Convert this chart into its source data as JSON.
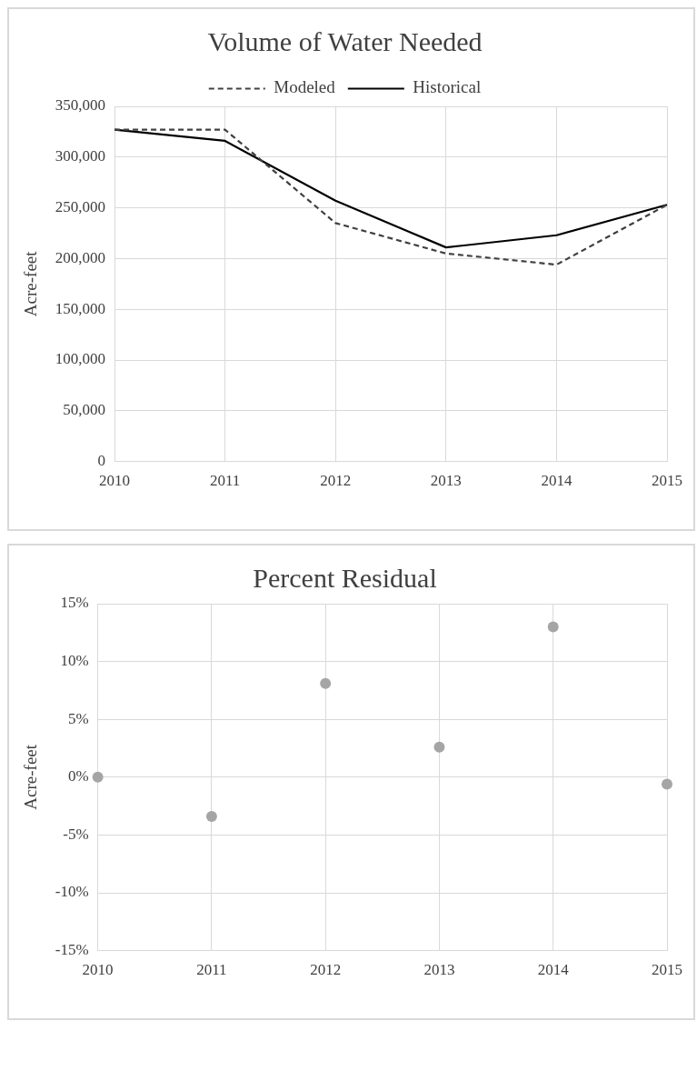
{
  "chart_data": [
    {
      "type": "line",
      "title": "Volume of Water Needed",
      "ylabel": "Acre-feet",
      "x": [
        2010,
        2011,
        2012,
        2013,
        2014,
        2015
      ],
      "xlim": [
        2010,
        2015
      ],
      "xticks": [
        2010,
        2011,
        2012,
        2013,
        2014,
        2015
      ],
      "ylim": [
        0,
        350000
      ],
      "yticks": [
        {
          "value": 0,
          "label": "0"
        },
        {
          "value": 50000,
          "label": "50,000"
        },
        {
          "value": 100000,
          "label": "100,000"
        },
        {
          "value": 150000,
          "label": "150,000"
        },
        {
          "value": 200000,
          "label": "200,000"
        },
        {
          "value": 250000,
          "label": "250,000"
        },
        {
          "value": 300000,
          "label": "300,000"
        },
        {
          "value": 350000,
          "label": "350,000"
        }
      ],
      "grid": true,
      "legend": "top",
      "marker": "none",
      "series": [
        {
          "name": "Modeled",
          "color": "#404040",
          "line_style": "dashed",
          "values": [
            327000,
            327000,
            235000,
            205000,
            194000,
            253000
          ]
        },
        {
          "name": "Historical",
          "color": "#000000",
          "line_style": "solid",
          "values": [
            327000,
            316000,
            257000,
            211000,
            223000,
            253000
          ]
        }
      ]
    },
    {
      "type": "scatter",
      "title": "Percent Residual",
      "ylabel": "Acre-feet",
      "x": [
        2010,
        2011,
        2012,
        2013,
        2014,
        2015
      ],
      "xlim": [
        2010,
        2015
      ],
      "xticks": [
        2010,
        2011,
        2012,
        2013,
        2014,
        2015
      ],
      "ylim": [
        -15,
        15
      ],
      "yticks": [
        {
          "value": -15,
          "label": "-15%"
        },
        {
          "value": -10,
          "label": "-10%"
        },
        {
          "value": -5,
          "label": "-5%"
        },
        {
          "value": 0,
          "label": "0%"
        },
        {
          "value": 5,
          "label": "5%"
        },
        {
          "value": 10,
          "label": "10%"
        },
        {
          "value": 15,
          "label": "15%"
        }
      ],
      "grid": true,
      "legend": false,
      "marker": "circle",
      "series": [
        {
          "color": "#a5a5a5",
          "values": [
            0,
            -3.4,
            8.1,
            2.6,
            13.0,
            -0.6
          ]
        }
      ]
    }
  ]
}
